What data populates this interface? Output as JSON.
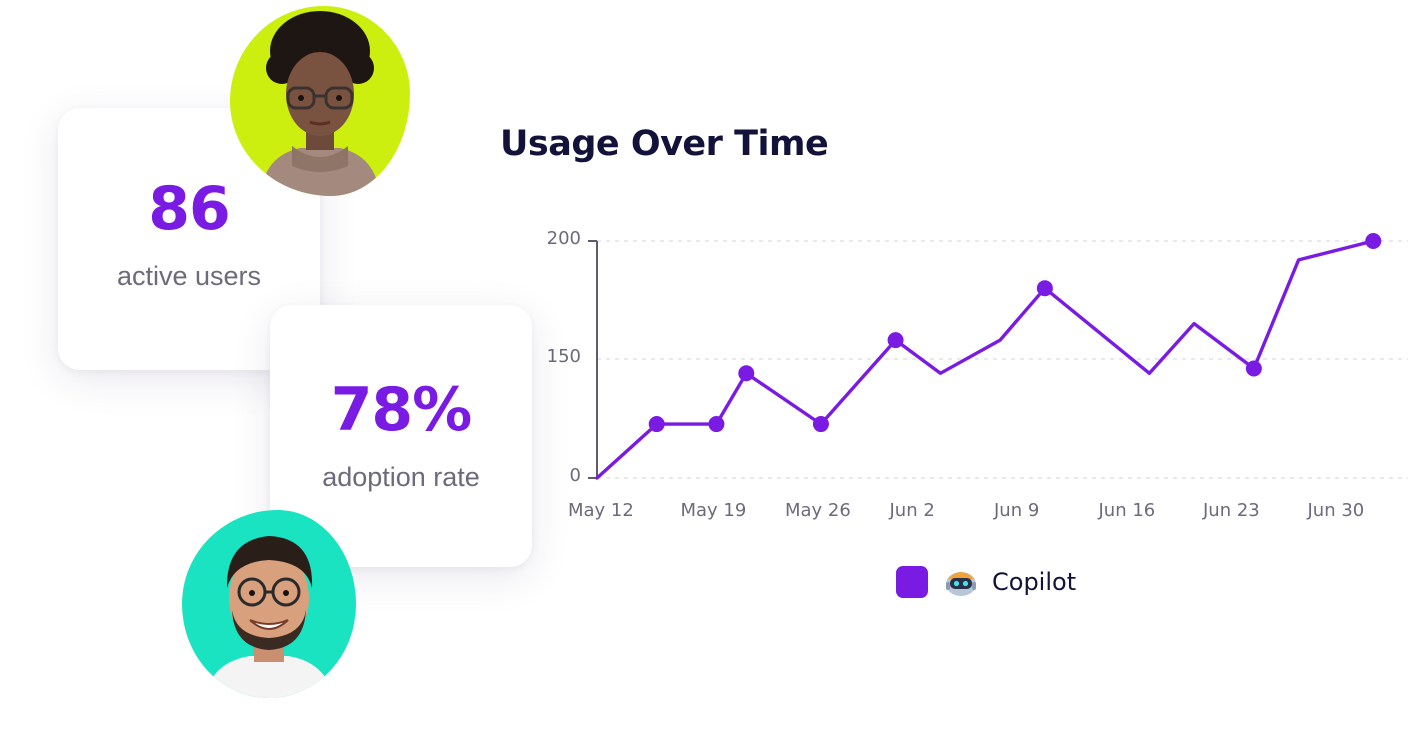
{
  "cards": {
    "users": {
      "value": "86",
      "label": "active users"
    },
    "adoption": {
      "value": "78%",
      "label": "adoption rate"
    }
  },
  "colors": {
    "accent": "#7a1be4",
    "avatar_woman_bg": "#cdef0f",
    "avatar_man_bg": "#19e3c0"
  },
  "chart_data": {
    "type": "line",
    "title": "Usage Over Time",
    "xlabel": "",
    "ylabel": "",
    "x_ticks": [
      "May 12",
      "May 19",
      "May 26",
      "Jun 2",
      "Jun 9",
      "Jun 16",
      "Jun 23",
      "Jun 30"
    ],
    "y_ticks": [
      "0",
      "150",
      "200"
    ],
    "grid": true,
    "legend_position": "bottom-center",
    "series": [
      {
        "name": "Copilot",
        "icon": "copilot-icon",
        "color": "#7a1be4",
        "points": [
          {
            "x": "May 12",
            "y": 0,
            "marker": false
          },
          {
            "x": "May 16",
            "y": 68,
            "marker": true
          },
          {
            "x": "May 20",
            "y": 68,
            "marker": true
          },
          {
            "x": "May 22",
            "y": 132,
            "marker": true
          },
          {
            "x": "May 27",
            "y": 68,
            "marker": true
          },
          {
            "x": "Jun 1",
            "y": 158,
            "marker": true
          },
          {
            "x": "Jun 4",
            "y": 132,
            "marker": false
          },
          {
            "x": "Jun 8",
            "y": 158,
            "marker": false
          },
          {
            "x": "Jun 11",
            "y": 180,
            "marker": true
          },
          {
            "x": "Jun 18",
            "y": 132,
            "marker": false
          },
          {
            "x": "Jun 21",
            "y": 165,
            "marker": false
          },
          {
            "x": "Jun 25",
            "y": 138,
            "marker": true
          },
          {
            "x": "Jun 28",
            "y": 192,
            "marker": false
          },
          {
            "x": "Jul 3",
            "y": 200,
            "marker": true
          }
        ]
      }
    ]
  }
}
